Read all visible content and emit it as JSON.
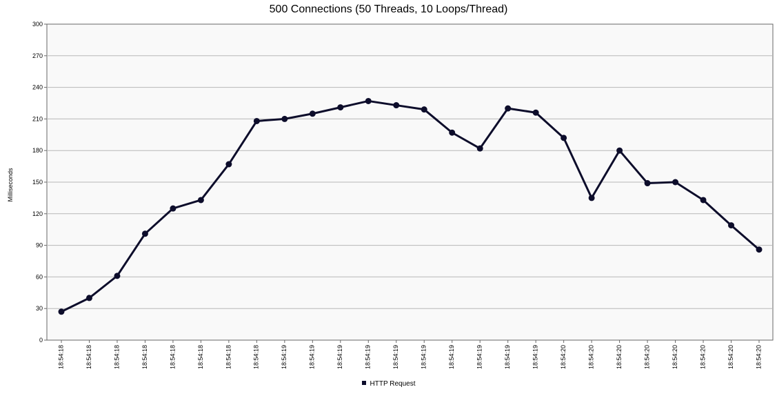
{
  "chart_data": {
    "type": "line",
    "title": "500 Connections (50 Threads, 10 Loops/Thread)",
    "ylabel": "Milliseconds",
    "xlabel": "",
    "ylim": [
      0,
      300
    ],
    "yticks": [
      0,
      30,
      60,
      90,
      120,
      150,
      180,
      210,
      240,
      270,
      300
    ],
    "grid": true,
    "legend_position": "bottom-center",
    "categories": [
      "18:54:18",
      "18:54:18",
      "18:54:18",
      "18:54:18",
      "18:54:18",
      "18:54:18",
      "18:54:18",
      "18:54:18",
      "18:54:19",
      "18:54:19",
      "18:54:19",
      "18:54:19",
      "18:54:19",
      "18:54:19",
      "18:54:19",
      "18:54:19",
      "18:54:19",
      "18:54:19",
      "18:54:20",
      "18:54:20",
      "18:54:20",
      "18:54:20",
      "18:54:20",
      "18:54:20",
      "18:54:20",
      "18:54:20"
    ],
    "series": [
      {
        "name": "HTTP Request",
        "color": "#0d0d2b",
        "values": [
          27,
          40,
          61,
          101,
          125,
          133,
          167,
          208,
          210,
          215,
          221,
          227,
          223,
          219,
          197,
          182,
          220,
          216,
          192,
          135,
          180,
          149,
          150,
          133,
          109,
          86
        ]
      }
    ]
  }
}
